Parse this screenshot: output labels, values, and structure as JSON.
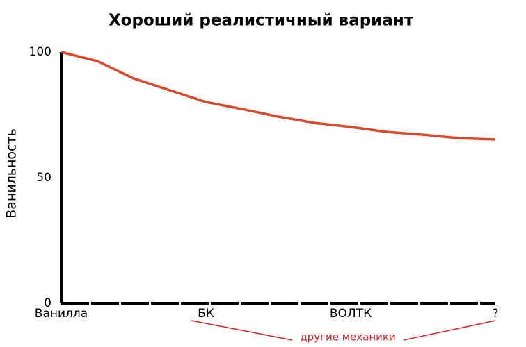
{
  "chart_data": {
    "type": "line",
    "title": "Хороший реалистичный вариант",
    "y_label": "Ванильность",
    "annotation": "другие механики",
    "x": [
      0,
      0.25,
      0.5,
      0.75,
      1,
      1.25,
      1.5,
      1.75,
      2,
      2.25,
      2.5,
      2.75,
      3
    ],
    "values": [
      100,
      96.4,
      89.5,
      84.8,
      80.1,
      77.3,
      74.3,
      71.8,
      70.2,
      68.2,
      67.1,
      65.7,
      65.2
    ],
    "color": "#d9482b",
    "xlim": [
      0,
      3
    ],
    "xticks": [
      {
        "value": 0,
        "label": "Ванилла"
      },
      {
        "value": 1,
        "label": "БК"
      },
      {
        "value": 2,
        "label": "ВОЛТК"
      },
      {
        "value": 3,
        "label": "?"
      }
    ],
    "ylim": [
      0,
      100
    ],
    "yticks": [
      0,
      50,
      100
    ],
    "grid": false
  }
}
